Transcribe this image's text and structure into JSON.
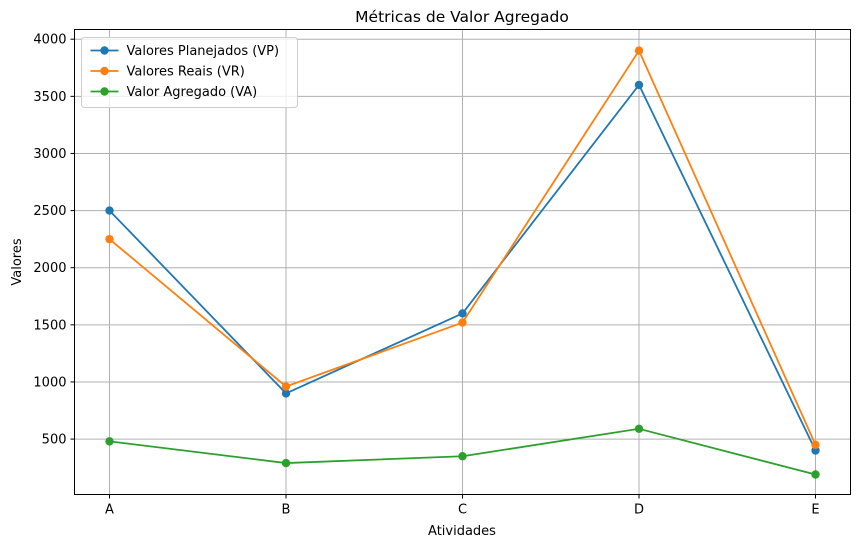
{
  "chart_data": {
    "type": "line",
    "title": "Métricas de Valor Agregado",
    "xlabel": "Atividades",
    "ylabel": "Valores",
    "categories": [
      "A",
      "B",
      "C",
      "D",
      "E"
    ],
    "yticks": [
      500,
      1000,
      1500,
      2000,
      2500,
      3000,
      3500,
      4000
    ],
    "ylim": [
      15,
      4085
    ],
    "grid": true,
    "legend_position": "upper-left",
    "series": [
      {
        "name": "Valores Planejados (VP)",
        "color": "#1f77b4",
        "marker": "circle",
        "values": [
          2500,
          900,
          1600,
          3600,
          400
        ]
      },
      {
        "name": "Valores Reais (VR)",
        "color": "#ff7f0e",
        "marker": "circle",
        "values": [
          2250,
          960,
          1520,
          3900,
          450
        ]
      },
      {
        "name": "Valor Agregado (VA)",
        "color": "#2ca02c",
        "marker": "circle",
        "values": [
          480,
          290,
          350,
          590,
          190
        ]
      }
    ]
  }
}
